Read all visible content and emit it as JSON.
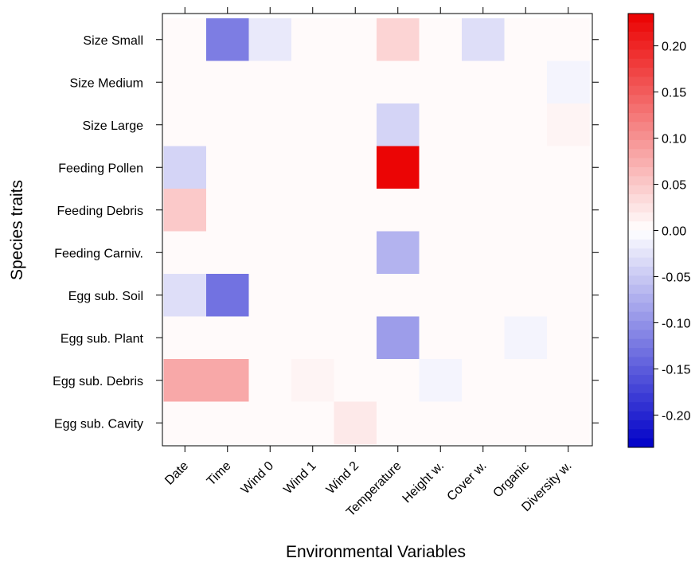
{
  "chart_data": {
    "type": "heatmap",
    "title": "",
    "xlabel": "Environmental Variables",
    "ylabel": "Species traits",
    "x_categories": [
      "Date",
      "Time",
      "Wind 0",
      "Wind 1",
      "Wind 2",
      "Temperature",
      "Height w.",
      "Cover w.",
      "Organic",
      "Diversity w."
    ],
    "y_categories": [
      "Size Small",
      "Size Medium",
      "Size Large",
      "Feeding Pollen",
      "Feeding Debris",
      "Feeding Carniv.",
      "Egg sub. Soil",
      "Egg sub. Plant",
      "Egg sub. Debris",
      "Egg sub. Cavity"
    ],
    "values": [
      [
        0,
        -0.12,
        -0.02,
        0,
        0,
        0.04,
        0,
        -0.03,
        0,
        0
      ],
      [
        0,
        0,
        0,
        0,
        0,
        0,
        0,
        0,
        0,
        -0.01
      ],
      [
        0,
        0,
        0,
        0,
        0,
        -0.04,
        0,
        0,
        0,
        0.01
      ],
      [
        -0.04,
        0,
        0,
        0,
        0,
        0.23,
        0,
        0,
        0,
        0
      ],
      [
        0.05,
        0,
        0,
        0,
        0,
        0,
        0,
        0,
        0,
        0
      ],
      [
        0,
        0,
        0,
        0,
        0,
        -0.07,
        0,
        0,
        0,
        0
      ],
      [
        -0.03,
        -0.13,
        0,
        0,
        0,
        0,
        0,
        0,
        0,
        0
      ],
      [
        0,
        0,
        0,
        0,
        0,
        -0.09,
        0,
        0,
        -0.01,
        0
      ],
      [
        0.08,
        0.08,
        0,
        0.01,
        0,
        0,
        -0.01,
        0,
        0,
        0
      ],
      [
        0,
        0,
        0,
        0,
        0.02,
        0,
        0,
        0,
        0,
        0
      ]
    ],
    "background_value": 0.005,
    "colorbar": {
      "ticks": [
        "0.20",
        "0.15",
        "0.10",
        "0.05",
        "0.00",
        "-0.05",
        "-0.10",
        "-0.15",
        "-0.20"
      ],
      "tick_values": [
        0.2,
        0.15,
        0.1,
        0.05,
        0.0,
        -0.05,
        -0.1,
        -0.15,
        -0.2
      ],
      "range": [
        -0.235,
        0.235
      ],
      "low_color": "#0000C8",
      "mid_color": "#FFFFFF",
      "high_color": "#EB0000"
    },
    "grid": false
  }
}
